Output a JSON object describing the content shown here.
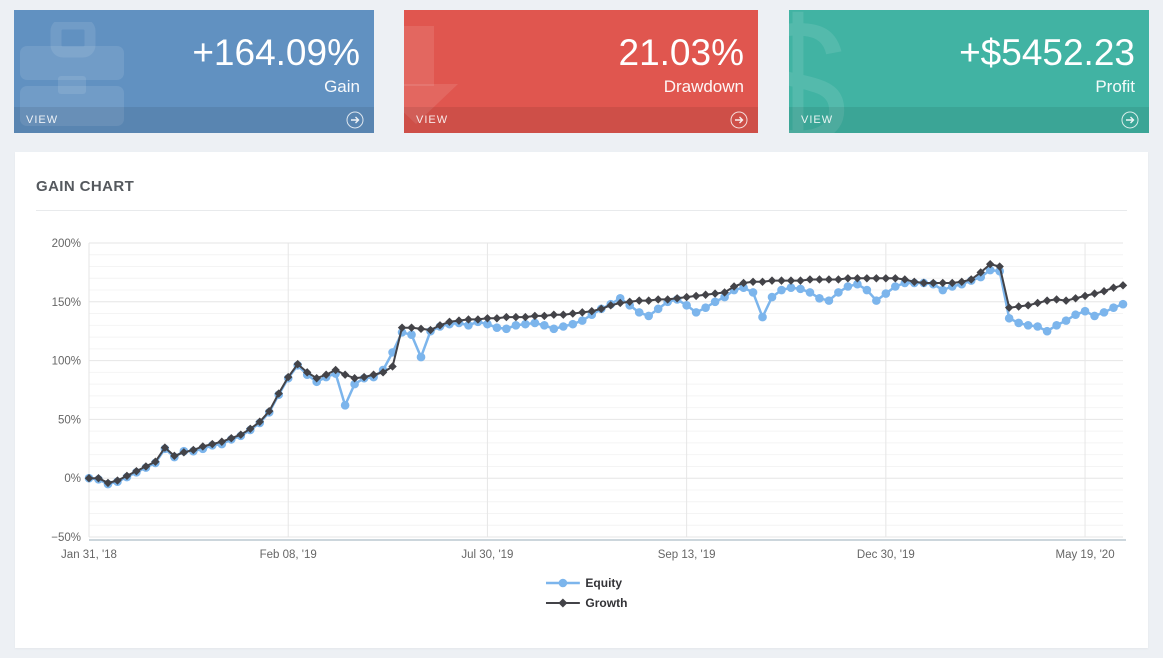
{
  "cards": [
    {
      "value": "+164.09%",
      "label": "Gain",
      "view_label": "VIEW",
      "color": "#6191c1",
      "icon": "briefcase-icon"
    },
    {
      "value": "21.03%",
      "label": "Drawdown",
      "view_label": "VIEW",
      "color": "#e0564f",
      "icon": "arrow-down-icon"
    },
    {
      "value": "+$5452.23",
      "label": "Profit",
      "view_label": "VIEW",
      "color": "#41b3a3",
      "icon": "dollar-icon",
      "watermark_glyph": "$"
    }
  ],
  "panel": {
    "title": "GAIN CHART"
  },
  "chart_data": {
    "type": "line",
    "title": "GAIN CHART",
    "xlabel": "",
    "ylabel": "",
    "ylim": [
      -50,
      200
    ],
    "grid": true,
    "minor_grid_step": 10,
    "legend_position": "bottom-center",
    "y_ticks": [
      {
        "v": 200,
        "label": "200%"
      },
      {
        "v": 150,
        "label": "150%"
      },
      {
        "v": 100,
        "label": "100%"
      },
      {
        "v": 50,
        "label": "50%"
      },
      {
        "v": 0,
        "label": "0%"
      },
      {
        "v": -50,
        "label": "−50%"
      }
    ],
    "x_tick_indexes": [
      0,
      21,
      42,
      63,
      84,
      105
    ],
    "x_tick_labels": [
      "Jan 31, '18",
      "Feb 08, '19",
      "Jul 30, '19",
      "Sep 13, '19",
      "Dec 30, '19",
      "May 19, '20"
    ],
    "series": [
      {
        "name": "Equity",
        "color": "#7cb5ec",
        "marker": "circle",
        "values": [
          0,
          -1,
          -5,
          -3,
          1,
          5,
          9,
          13,
          25,
          18,
          23,
          23,
          25,
          28,
          29,
          33,
          36,
          41,
          47,
          56,
          71,
          85,
          96,
          88,
          82,
          86,
          89,
          62,
          80,
          85,
          86,
          92,
          107,
          124,
          122,
          103,
          125,
          129,
          131,
          132,
          130,
          133,
          131,
          128,
          127,
          130,
          131,
          132,
          130,
          127,
          129,
          131,
          134,
          139,
          144,
          148,
          153,
          147,
          141,
          138,
          144,
          150,
          152,
          147,
          141,
          145,
          150,
          154,
          160,
          162,
          158,
          137,
          154,
          160,
          162,
          161,
          158,
          153,
          151,
          158,
          163,
          165,
          160,
          151,
          157,
          163,
          166,
          166,
          166,
          165,
          160,
          163,
          165,
          168,
          171,
          177,
          176,
          136,
          132,
          130,
          129,
          125,
          130,
          134,
          139,
          142,
          138,
          141,
          145,
          148
        ]
      },
      {
        "name": "Growth",
        "color": "#434348",
        "marker": "diamond",
        "values": [
          0,
          0,
          -4,
          -2,
          2,
          6,
          10,
          14,
          26,
          19,
          22,
          24,
          27,
          29,
          31,
          34,
          37,
          42,
          48,
          57,
          72,
          86,
          97,
          90,
          85,
          88,
          92,
          88,
          85,
          86,
          88,
          90,
          95,
          128,
          128,
          127,
          126,
          130,
          133,
          134,
          135,
          135,
          136,
          136,
          137,
          137,
          137,
          138,
          138,
          139,
          139,
          140,
          141,
          142,
          144,
          147,
          149,
          150,
          151,
          151,
          152,
          152,
          153,
          154,
          155,
          156,
          157,
          158,
          163,
          166,
          167,
          167,
          168,
          168,
          168,
          168,
          169,
          169,
          169,
          169,
          170,
          170,
          170,
          170,
          170,
          170,
          169,
          167,
          166,
          166,
          166,
          166,
          167,
          169,
          175,
          182,
          180,
          145,
          146,
          147,
          149,
          151,
          152,
          151,
          153,
          155,
          157,
          159,
          162,
          164
        ]
      }
    ]
  }
}
